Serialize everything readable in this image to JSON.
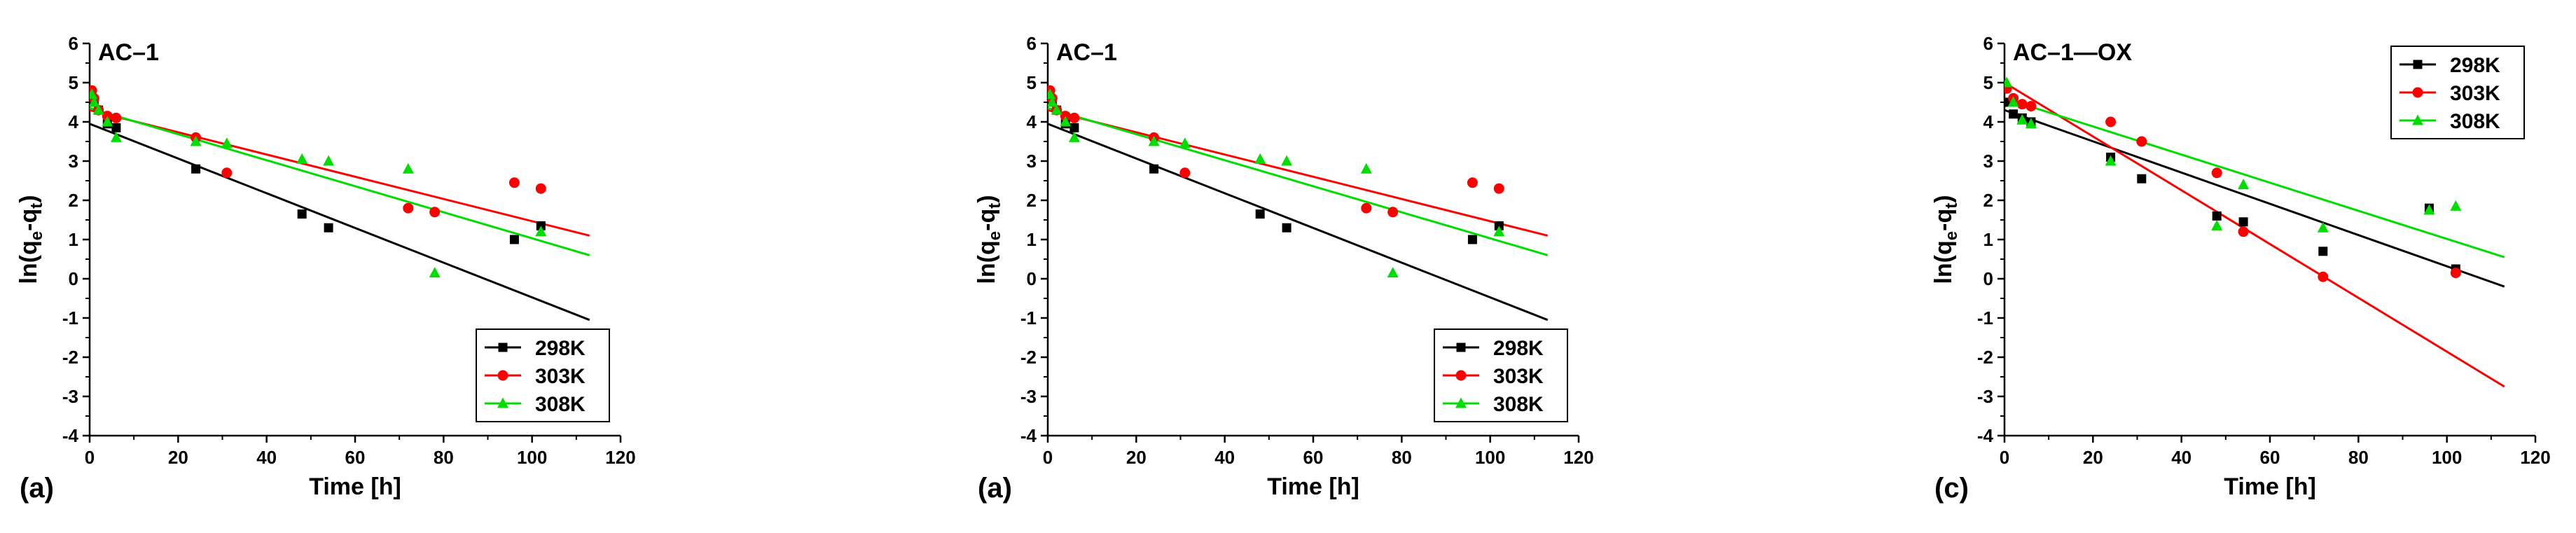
{
  "colors": {
    "298K": "#000000",
    "303K": "#ff0000",
    "308K": "#00dd00"
  },
  "chart_data": [
    {
      "type": "scatter",
      "panel_label": "(a)",
      "title": "AC–1",
      "xlabel": "Time [h]",
      "ylabel_main": "ln(q",
      "ylabel_sub1": "e",
      "ylabel_mid": "-q",
      "ylabel_sub2": "t",
      "ylabel_end": ")",
      "xlim": [
        0,
        120
      ],
      "ylim": [
        -4,
        6
      ],
      "xticks": [
        "0",
        "20",
        "40",
        "60",
        "80",
        "100",
        "120"
      ],
      "yticks": [
        "-4",
        "-3",
        "-2",
        "-1",
        "0",
        "1",
        "2",
        "3",
        "4",
        "5",
        "6"
      ],
      "legend_position": "bottom-right",
      "series": [
        {
          "name": "298K",
          "marker": "square",
          "x": [
            0.5,
            1,
            2,
            4,
            6,
            24,
            48,
            54,
            96,
            102
          ],
          "y": [
            4.6,
            4.5,
            4.3,
            3.95,
            3.85,
            2.8,
            1.65,
            1.3,
            1.0,
            1.35
          ],
          "fit": [
            [
              0,
              3.95
            ],
            [
              113,
              -1.05
            ]
          ]
        },
        {
          "name": "303K",
          "marker": "circle",
          "x": [
            0.5,
            1,
            2,
            4,
            6,
            24,
            31,
            72,
            78,
            96,
            102
          ],
          "y": [
            4.8,
            4.6,
            4.3,
            4.15,
            4.1,
            3.6,
            2.7,
            1.8,
            1.7,
            2.45,
            2.3
          ],
          "fit": [
            [
              0,
              4.3
            ],
            [
              113,
              1.1
            ]
          ]
        },
        {
          "name": "308K",
          "marker": "triangle",
          "x": [
            0.5,
            1,
            2,
            4,
            6,
            24,
            31,
            48,
            54,
            72,
            78,
            102
          ],
          "y": [
            4.7,
            4.5,
            4.3,
            4.0,
            3.6,
            3.5,
            3.45,
            3.05,
            3.0,
            2.8,
            0.15,
            1.2
          ],
          "fit": [
            [
              0,
              4.35
            ],
            [
              113,
              0.6
            ]
          ]
        }
      ]
    },
    {
      "type": "scatter",
      "panel_label": "(a)",
      "title": "AC–1",
      "xlabel": "Time [h]",
      "ylabel_main": "ln(q",
      "ylabel_sub1": "e",
      "ylabel_mid": "-q",
      "ylabel_sub2": "t",
      "ylabel_end": ")",
      "xlim": [
        0,
        120
      ],
      "ylim": [
        -4,
        6
      ],
      "xticks": [
        "0",
        "20",
        "40",
        "60",
        "80",
        "100",
        "120"
      ],
      "yticks": [
        "-4",
        "-3",
        "-2",
        "-1",
        "0",
        "1",
        "2",
        "3",
        "4",
        "5",
        "6"
      ],
      "legend_position": "bottom-right",
      "series": [
        {
          "name": "298K",
          "marker": "square",
          "x": [
            0.5,
            1,
            2,
            4,
            6,
            24,
            48,
            54,
            96,
            102
          ],
          "y": [
            4.6,
            4.5,
            4.3,
            3.95,
            3.85,
            2.8,
            1.65,
            1.3,
            1.0,
            1.35
          ],
          "fit": [
            [
              0,
              3.95
            ],
            [
              113,
              -1.05
            ]
          ]
        },
        {
          "name": "303K",
          "marker": "circle",
          "x": [
            0.5,
            1,
            2,
            4,
            6,
            24,
            31,
            72,
            78,
            96,
            102
          ],
          "y": [
            4.8,
            4.6,
            4.3,
            4.15,
            4.1,
            3.6,
            2.7,
            1.8,
            1.7,
            2.45,
            2.3
          ],
          "fit": [
            [
              0,
              4.3
            ],
            [
              113,
              1.1
            ]
          ]
        },
        {
          "name": "308K",
          "marker": "triangle",
          "x": [
            0.5,
            1,
            2,
            4,
            6,
            24,
            31,
            48,
            54,
            72,
            78,
            102
          ],
          "y": [
            4.7,
            4.5,
            4.3,
            4.0,
            3.6,
            3.5,
            3.45,
            3.05,
            3.0,
            2.8,
            0.15,
            1.2
          ],
          "fit": [
            [
              0,
              4.35
            ],
            [
              113,
              0.6
            ]
          ]
        }
      ]
    },
    {
      "type": "scatter",
      "panel_label": "(c)",
      "title": "AC–1—OX",
      "xlabel": "Time [h]",
      "ylabel_main": "ln(q",
      "ylabel_sub1": "e",
      "ylabel_mid": "-q",
      "ylabel_sub2": "t",
      "ylabel_end": ")",
      "xlim": [
        0,
        120
      ],
      "ylim": [
        -4,
        6
      ],
      "xticks": [
        "0",
        "20",
        "40",
        "60",
        "80",
        "100",
        "120"
      ],
      "yticks": [
        "-4",
        "-3",
        "-2",
        "-1",
        "0",
        "1",
        "2",
        "3",
        "4",
        "5",
        "6"
      ],
      "legend_position": "top-right",
      "series": [
        {
          "name": "298K",
          "marker": "square",
          "x": [
            0.5,
            2,
            4,
            6,
            24,
            31,
            48,
            54,
            72,
            96,
            102
          ],
          "y": [
            4.5,
            4.2,
            4.1,
            4.0,
            3.1,
            2.55,
            1.6,
            1.45,
            0.7,
            1.8,
            0.25
          ],
          "fit": [
            [
              0,
              4.3
            ],
            [
              113,
              -0.2
            ]
          ]
        },
        {
          "name": "303K",
          "marker": "circle",
          "x": [
            0.5,
            2,
            4,
            6,
            24,
            31,
            48,
            54,
            72,
            102
          ],
          "y": [
            4.85,
            4.6,
            4.45,
            4.4,
            4.0,
            3.5,
            2.7,
            1.2,
            0.05,
            0.15
          ],
          "fit": [
            [
              0,
              5.0
            ],
            [
              113,
              -2.75
            ]
          ]
        },
        {
          "name": "308K",
          "marker": "triangle",
          "x": [
            0.5,
            2,
            4,
            6,
            24,
            48,
            54,
            72,
            96,
            102
          ],
          "y": [
            5.0,
            4.5,
            4.05,
            3.95,
            3.0,
            1.35,
            2.4,
            1.3,
            1.75,
            1.85
          ],
          "fit": [
            [
              0,
              4.6
            ],
            [
              113,
              0.55
            ]
          ]
        }
      ]
    }
  ]
}
